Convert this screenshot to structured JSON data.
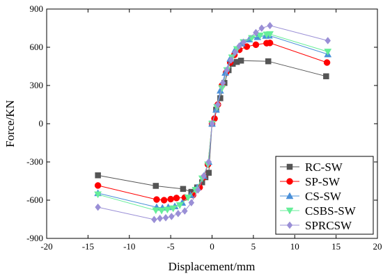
{
  "chart_data": {
    "type": "line",
    "xlabel": "Displacement/mm",
    "ylabel": "Force/KN",
    "xlim": [
      -20,
      20
    ],
    "ylim": [
      -900,
      900
    ],
    "xticks": [
      -20,
      -15,
      -10,
      -5,
      0,
      5,
      10,
      15,
      20
    ],
    "yticks": [
      -900,
      -600,
      -300,
      0,
      300,
      600,
      900
    ],
    "grid": false,
    "legend_position": "bottom-right",
    "series": [
      {
        "name": "RC-SW",
        "color": "#555555",
        "marker": "square",
        "points": [
          [
            -13.8,
            -405
          ],
          [
            -6.8,
            -488
          ],
          [
            -3.5,
            -512
          ],
          [
            -2.5,
            -535
          ],
          [
            -1.8,
            -500
          ],
          [
            -1.2,
            -460
          ],
          [
            -0.8,
            -420
          ],
          [
            -0.4,
            -385
          ],
          [
            0,
            0
          ],
          [
            0.5,
            110
          ],
          [
            1.0,
            200
          ],
          [
            1.5,
            320
          ],
          [
            2.0,
            420
          ],
          [
            2.5,
            470
          ],
          [
            3.0,
            485
          ],
          [
            3.5,
            495
          ],
          [
            6.8,
            490
          ],
          [
            13.8,
            372
          ]
        ]
      },
      {
        "name": "SP-SW",
        "color": "#ff0000",
        "marker": "circle",
        "points": [
          [
            -13.8,
            -485
          ],
          [
            -6.7,
            -595
          ],
          [
            -5.8,
            -600
          ],
          [
            -5.0,
            -592
          ],
          [
            -4.3,
            -583
          ],
          [
            -3.3,
            -580
          ],
          [
            -2.3,
            -560
          ],
          [
            -1.5,
            -500
          ],
          [
            -1.0,
            -420
          ],
          [
            -0.5,
            -320
          ],
          [
            0,
            0
          ],
          [
            0.3,
            40
          ],
          [
            0.7,
            150
          ],
          [
            1.2,
            300
          ],
          [
            1.7,
            400
          ],
          [
            2.2,
            480
          ],
          [
            2.7,
            540
          ],
          [
            3.3,
            580
          ],
          [
            4.2,
            605
          ],
          [
            5.3,
            620
          ],
          [
            6.6,
            632
          ],
          [
            7.0,
            634
          ],
          [
            13.9,
            480
          ]
        ]
      },
      {
        "name": "CS-SW",
        "color": "#4a90d9",
        "marker": "triangle",
        "points": [
          [
            -13.8,
            -545
          ],
          [
            -6.7,
            -655
          ],
          [
            -6.0,
            -660
          ],
          [
            -5.3,
            -655
          ],
          [
            -4.5,
            -648
          ],
          [
            -3.6,
            -620
          ],
          [
            -2.6,
            -560
          ],
          [
            -1.8,
            -500
          ],
          [
            -1.0,
            -410
          ],
          [
            -0.4,
            -300
          ],
          [
            0,
            0
          ],
          [
            0.5,
            110
          ],
          [
            1.0,
            260
          ],
          [
            1.6,
            400
          ],
          [
            2.2,
            510
          ],
          [
            2.8,
            580
          ],
          [
            3.6,
            630
          ],
          [
            4.5,
            662
          ],
          [
            5.5,
            680
          ],
          [
            6.5,
            690
          ],
          [
            6.9,
            692
          ],
          [
            14.0,
            545
          ]
        ]
      },
      {
        "name": "CSBS-SW",
        "color": "#66ee99",
        "marker": "triangle-down",
        "points": [
          [
            -13.8,
            -555
          ],
          [
            -6.8,
            -680
          ],
          [
            -6.1,
            -682
          ],
          [
            -5.4,
            -675
          ],
          [
            -4.7,
            -665
          ],
          [
            -3.9,
            -640
          ],
          [
            -2.9,
            -580
          ],
          [
            -2.0,
            -520
          ],
          [
            -1.2,
            -430
          ],
          [
            -0.5,
            -320
          ],
          [
            0,
            0
          ],
          [
            0.6,
            130
          ],
          [
            1.2,
            280
          ],
          [
            1.8,
            420
          ],
          [
            2.4,
            520
          ],
          [
            3.0,
            585
          ],
          [
            3.8,
            640
          ],
          [
            4.8,
            672
          ],
          [
            5.8,
            692
          ],
          [
            6.6,
            700
          ],
          [
            7.0,
            703
          ],
          [
            14.0,
            565
          ]
        ]
      },
      {
        "name": "SPRCSW",
        "color": "#9a8fd6",
        "marker": "diamond",
        "points": [
          [
            -13.8,
            -655
          ],
          [
            -7.0,
            -752
          ],
          [
            -6.3,
            -743
          ],
          [
            -5.6,
            -738
          ],
          [
            -4.9,
            -728
          ],
          [
            -4.1,
            -705
          ],
          [
            -3.3,
            -685
          ],
          [
            -2.5,
            -620
          ],
          [
            -1.7,
            -520
          ],
          [
            -1.0,
            -410
          ],
          [
            -0.4,
            -300
          ],
          [
            0,
            0
          ],
          [
            0.7,
            150
          ],
          [
            1.3,
            320
          ],
          [
            1.8,
            420
          ],
          [
            2.3,
            500
          ],
          [
            2.8,
            560
          ],
          [
            3.3,
            610
          ],
          [
            3.8,
            640
          ],
          [
            5.3,
            715
          ],
          [
            6.0,
            750
          ],
          [
            7.0,
            770
          ],
          [
            14.0,
            652
          ]
        ]
      }
    ]
  }
}
